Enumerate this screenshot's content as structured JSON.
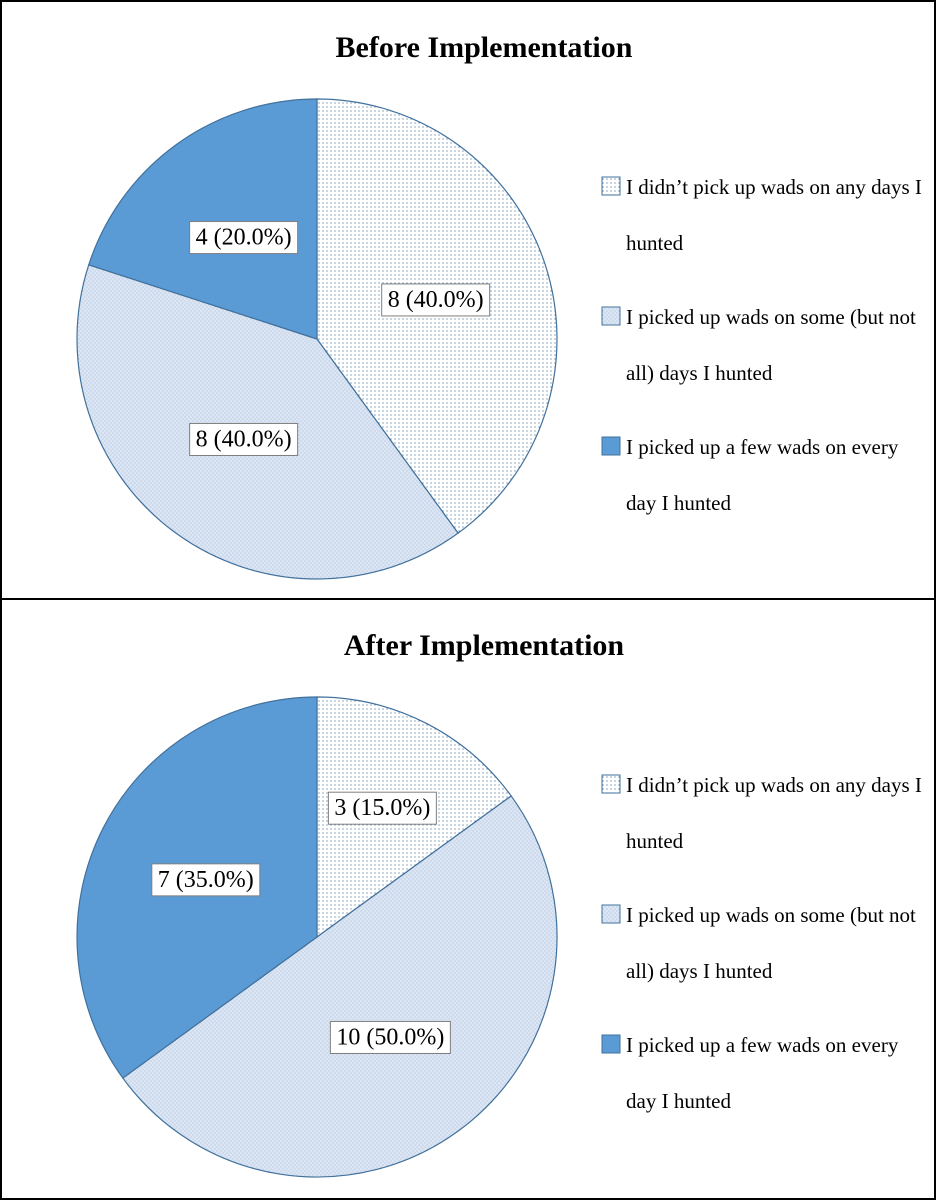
{
  "chart_data": [
    {
      "type": "pie",
      "title": "Before Implementation",
      "categories": [
        "I didn’t pick up wads on any days I hunted",
        "I picked up wads on some (but not all) days I hunted",
        "I picked up a few wads on every day I hunted"
      ],
      "values": [
        8,
        8,
        4
      ],
      "value_labels": [
        "8 (40.0%)",
        "8 (40.0%)",
        "4 (20.0%)"
      ],
      "colors": [
        "#ffffff",
        "#dce6f2",
        "#5b9bd5"
      ],
      "legend": "right"
    },
    {
      "type": "pie",
      "title": "After Implementation",
      "categories": [
        "I didn’t pick up wads on any days I hunted",
        "I picked up wads on some (but not all) days I hunted",
        "I picked up a few wads on every day I hunted"
      ],
      "values": [
        3,
        10,
        7
      ],
      "value_labels": [
        "3 (15.0%)",
        "10 (50.0%)",
        "7 (35.0%)"
      ],
      "colors": [
        "#ffffff",
        "#dce6f2",
        "#5b9bd5"
      ],
      "legend": "right"
    }
  ]
}
